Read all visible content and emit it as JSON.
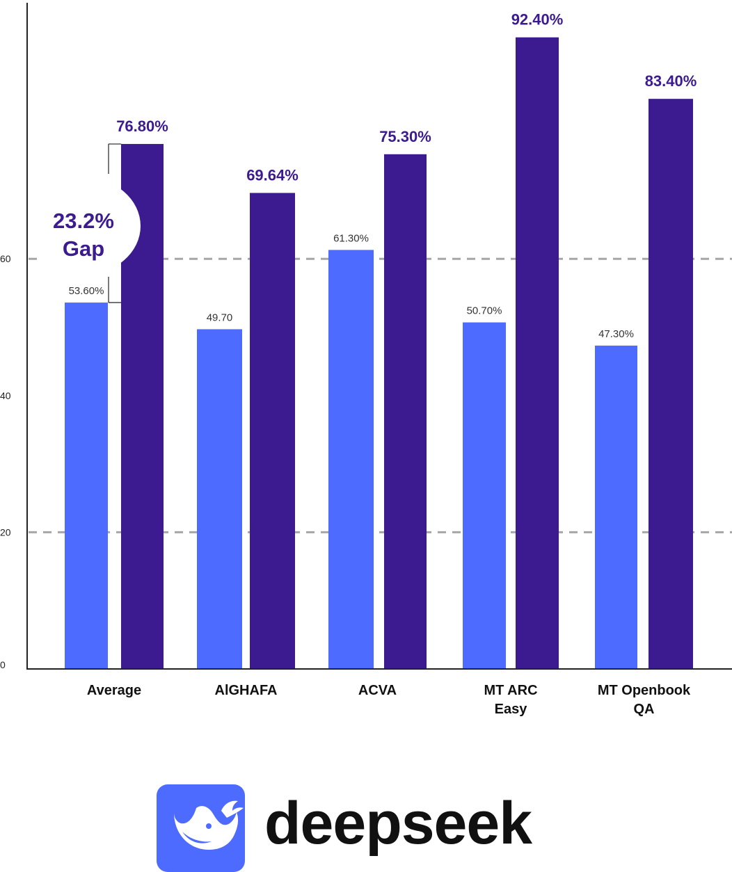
{
  "chart_data": {
    "type": "bar",
    "categories": [
      [
        "Average"
      ],
      [
        "AlGHAFA"
      ],
      [
        "ACVA"
      ],
      [
        "MT ARC",
        "Easy"
      ],
      [
        "MT Openbook",
        "QA"
      ]
    ],
    "series": [
      {
        "color": "#4d6bfe",
        "values": [
          53.6,
          49.7,
          61.3,
          50.7,
          47.3
        ],
        "labels": [
          "53.60%",
          "49.70",
          "61.30%",
          "50.70%",
          "47.30%"
        ]
      },
      {
        "color": "#3c1a8f",
        "values": [
          76.8,
          69.64,
          75.3,
          92.4,
          83.4
        ],
        "labels": [
          "76.80%",
          "69.64%",
          "75.30%",
          "92.40%",
          "83.40%"
        ]
      }
    ],
    "y_ticks": [
      {
        "value": 0,
        "label": "0",
        "grid": false
      },
      {
        "value": 20,
        "label": "20",
        "grid": true
      },
      {
        "value": 40,
        "label": "40",
        "grid": false
      },
      {
        "value": 60,
        "label": "60",
        "grid": true
      }
    ],
    "ylim": [
      0,
      95
    ],
    "annotation": {
      "lines": [
        "23.2%",
        "Gap"
      ],
      "category_index": 0
    },
    "grid": "dashed at 20 and 60"
  },
  "colors": {
    "accent_light": "#4d6bfe",
    "accent_dark": "#3c1a8f",
    "grid": "#a6a6a6",
    "axis": "#222222"
  },
  "brand": {
    "name": "deepseek",
    "icon": "whale-icon",
    "icon_bg": "#4d6bfe"
  }
}
